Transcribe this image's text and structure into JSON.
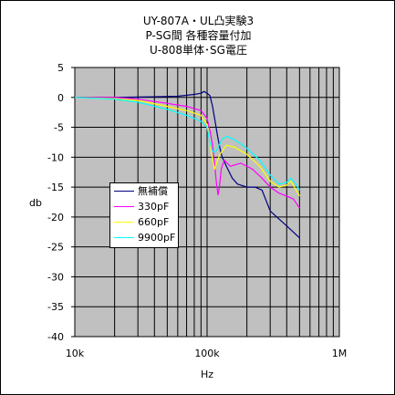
{
  "chart_data": {
    "type": "line",
    "title_lines": [
      "UY-807A・UL凸実験3",
      "P-SG間 各種容量付加",
      "U-808単体･SG電圧"
    ],
    "xlabel": "Hz",
    "ylabel": "db",
    "x_scale": "log",
    "xlim": [
      10000,
      1000000
    ],
    "ylim": [
      -40,
      5
    ],
    "x_ticks": [
      10000,
      100000,
      1000000
    ],
    "x_tick_labels": [
      "10k",
      "100k",
      "1M"
    ],
    "y_ticks": [
      5,
      0,
      -5,
      -10,
      -15,
      -20,
      -25,
      -30,
      -35,
      -40
    ],
    "y_tick_labels": [
      "5",
      "0",
      "-5",
      "-10",
      "-15",
      "-20",
      "-25",
      "-30",
      "-35",
      "-40"
    ],
    "grid": true,
    "legend_position": "center-left",
    "plot_background": "#c0c0c0",
    "series": [
      {
        "name": "無補償",
        "color": "#000080",
        "points": [
          [
            10000,
            0
          ],
          [
            20000,
            0
          ],
          [
            40000,
            0.1
          ],
          [
            60000,
            0.2
          ],
          [
            80000,
            0.5
          ],
          [
            90000,
            0.7
          ],
          [
            95000,
            1.0
          ],
          [
            100000,
            0.7
          ],
          [
            105000,
            0.3
          ],
          [
            110000,
            -1.5
          ],
          [
            115000,
            -4
          ],
          [
            120000,
            -6.5
          ],
          [
            125000,
            -8.5
          ],
          [
            130000,
            -10
          ],
          [
            140000,
            -11.5
          ],
          [
            155000,
            -13.5
          ],
          [
            170000,
            -14.5
          ],
          [
            200000,
            -15
          ],
          [
            230000,
            -15
          ],
          [
            260000,
            -15.5
          ],
          [
            300000,
            -19
          ],
          [
            400000,
            -21.5
          ],
          [
            500000,
            -23.5
          ]
        ]
      },
      {
        "name": "330pF",
        "color": "#ff00ff",
        "points": [
          [
            10000,
            0
          ],
          [
            20000,
            0
          ],
          [
            30000,
            -0.3
          ],
          [
            50000,
            -1
          ],
          [
            70000,
            -1.5
          ],
          [
            90000,
            -2.2
          ],
          [
            100000,
            -3.5
          ],
          [
            105000,
            -5.5
          ],
          [
            110000,
            -8
          ],
          [
            115000,
            -12
          ],
          [
            118000,
            -14.5
          ],
          [
            121000,
            -16.3
          ],
          [
            124000,
            -15
          ],
          [
            128000,
            -12
          ],
          [
            135000,
            -10.5
          ],
          [
            150000,
            -11.5
          ],
          [
            180000,
            -11
          ],
          [
            220000,
            -12
          ],
          [
            260000,
            -13.5
          ],
          [
            300000,
            -15
          ],
          [
            350000,
            -16
          ],
          [
            400000,
            -16.5
          ],
          [
            450000,
            -17
          ],
          [
            500000,
            -18.5
          ]
        ]
      },
      {
        "name": "660pF",
        "color": "#ffff00",
        "points": [
          [
            10000,
            0
          ],
          [
            20000,
            -0.2
          ],
          [
            30000,
            -0.5
          ],
          [
            50000,
            -1.5
          ],
          [
            70000,
            -2.2
          ],
          [
            90000,
            -3
          ],
          [
            100000,
            -4.5
          ],
          [
            105000,
            -7.5
          ],
          [
            110000,
            -10.5
          ],
          [
            114000,
            -12
          ],
          [
            118000,
            -11
          ],
          [
            125000,
            -9.5
          ],
          [
            140000,
            -8
          ],
          [
            160000,
            -8.3
          ],
          [
            200000,
            -9.5
          ],
          [
            250000,
            -11.5
          ],
          [
            300000,
            -14
          ],
          [
            350000,
            -15
          ],
          [
            400000,
            -14.7
          ],
          [
            430000,
            -14
          ],
          [
            500000,
            -16.5
          ]
        ]
      },
      {
        "name": "9900pF",
        "color": "#00ffff",
        "points": [
          [
            10000,
            0
          ],
          [
            20000,
            -0.3
          ],
          [
            30000,
            -0.8
          ],
          [
            50000,
            -2
          ],
          [
            70000,
            -3
          ],
          [
            90000,
            -4
          ],
          [
            100000,
            -5
          ],
          [
            105000,
            -7.5
          ],
          [
            110000,
            -9
          ],
          [
            115000,
            -9.2
          ],
          [
            120000,
            -8.5
          ],
          [
            130000,
            -7
          ],
          [
            140000,
            -6.5
          ],
          [
            160000,
            -7
          ],
          [
            200000,
            -8.5
          ],
          [
            250000,
            -10.5
          ],
          [
            300000,
            -13
          ],
          [
            350000,
            -14.5
          ],
          [
            400000,
            -14.2
          ],
          [
            430000,
            -13.5
          ],
          [
            470000,
            -14.5
          ],
          [
            500000,
            -15.5
          ]
        ]
      }
    ]
  }
}
